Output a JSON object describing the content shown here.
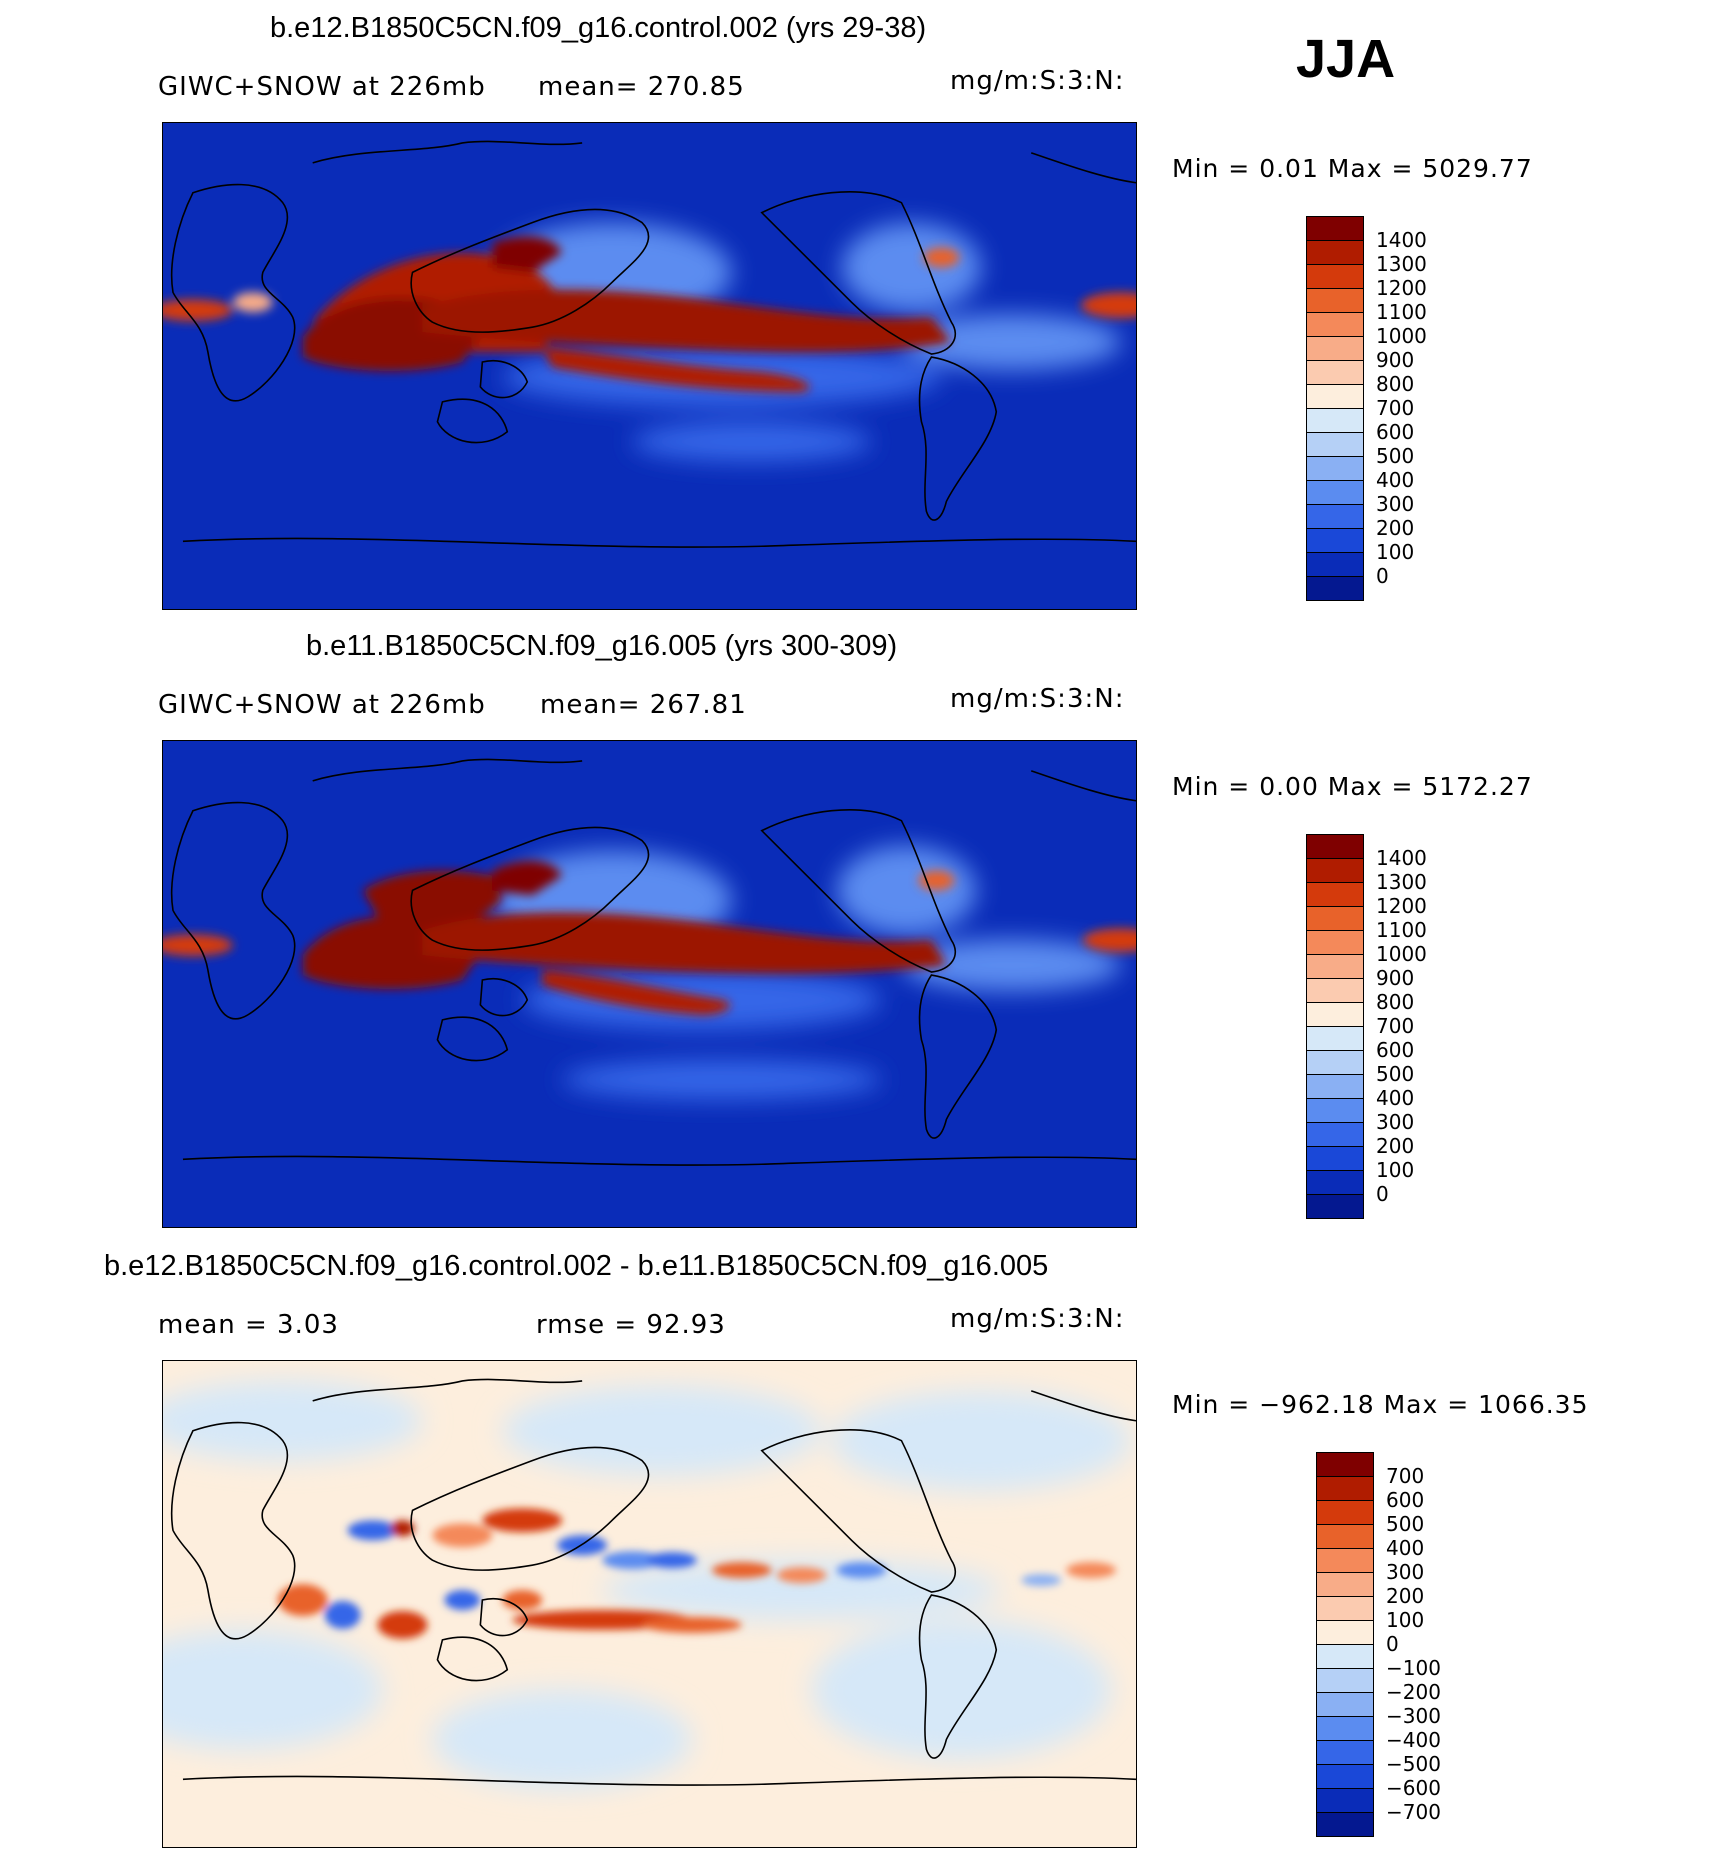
{
  "season": "JJA",
  "panels": [
    {
      "title": "b.e12.B1850C5CN.f09_g16.control.002 (yrs 29-38)",
      "left_label": "GIWC+SNOW at 226mb",
      "mid_label": "mean= 270.85",
      "units": "mg/m:S:3:N:",
      "minmax": "Min =    0.01 Max = 5029.77",
      "colorbar_ticks": [
        "1400",
        "1300",
        "1200",
        "1100",
        "1000",
        "900",
        "800",
        "700",
        "600",
        "500",
        "400",
        "300",
        "200",
        "100",
        "0"
      ],
      "colorbar_colors": [
        "#7f0000",
        "#b01c00",
        "#d43a0c",
        "#e8622a",
        "#f4895a",
        "#f8ac88",
        "#fbcbb0",
        "#fdeedd",
        "#d6e8f8",
        "#b5d0f6",
        "#8ab0f3",
        "#5b8cf0",
        "#3566e8",
        "#1a48d8",
        "#0a2cb8",
        "#041890"
      ],
      "kind": "field"
    },
    {
      "title": "b.e11.B1850C5CN.f09_g16.005 (yrs 300-309)",
      "left_label": "GIWC+SNOW at 226mb",
      "mid_label": "mean= 267.81",
      "units": "mg/m:S:3:N:",
      "minmax": "Min =    0.00 Max = 5172.27",
      "colorbar_ticks": [
        "1400",
        "1300",
        "1200",
        "1100",
        "1000",
        "900",
        "800",
        "700",
        "600",
        "500",
        "400",
        "300",
        "200",
        "100",
        "0"
      ],
      "colorbar_colors": [
        "#7f0000",
        "#b01c00",
        "#d43a0c",
        "#e8622a",
        "#f4895a",
        "#f8ac88",
        "#fbcbb0",
        "#fdeedd",
        "#d6e8f8",
        "#b5d0f6",
        "#8ab0f3",
        "#5b8cf0",
        "#3566e8",
        "#1a48d8",
        "#0a2cb8",
        "#041890"
      ],
      "kind": "field"
    },
    {
      "title": "b.e12.B1850C5CN.f09_g16.control.002 - b.e11.B1850C5CN.f09_g16.005",
      "left_label": "mean =     3.03",
      "mid_label": "rmse =    92.93",
      "units": "mg/m:S:3:N:",
      "minmax": "Min = −962.18 Max =  1066.35",
      "colorbar_ticks": [
        "700",
        "600",
        "500",
        "400",
        "300",
        "200",
        "100",
        "0",
        "−100",
        "−200",
        "−300",
        "−400",
        "−500",
        "−600",
        "−700"
      ],
      "colorbar_colors": [
        "#7f0000",
        "#b01c00",
        "#d43a0c",
        "#e8622a",
        "#f4895a",
        "#f8ac88",
        "#fbcbb0",
        "#fdeedd",
        "#d6e8f8",
        "#b5d0f6",
        "#8ab0f3",
        "#5b8cf0",
        "#3566e8",
        "#1a48d8",
        "#0a2cb8",
        "#041890"
      ],
      "kind": "diff"
    }
  ]
}
